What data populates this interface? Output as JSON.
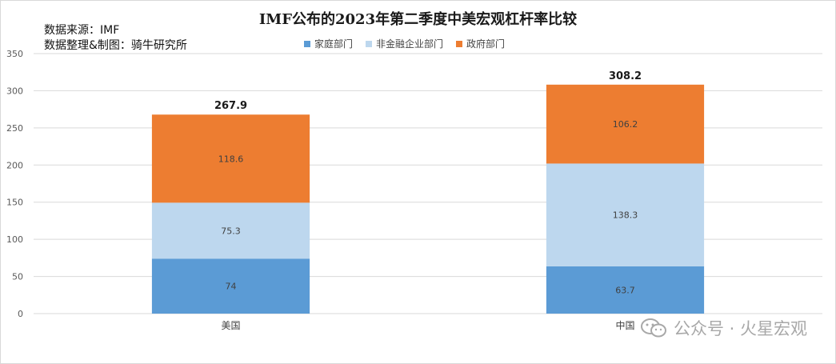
{
  "chart_data": {
    "type": "bar",
    "stacked": true,
    "title": "IMF公布的2023年第二季度中美宏观杠杆率比较",
    "categories": [
      "美国",
      "中国"
    ],
    "series": [
      {
        "name": "家庭部门",
        "values": [
          74,
          63.7
        ],
        "labels": [
          "74",
          "63.7"
        ],
        "color": "#5b9bd5"
      },
      {
        "name": "非金融企业部门",
        "values": [
          75.3,
          138.3
        ],
        "labels": [
          "75.3",
          "138.3"
        ],
        "color": "#bdd7ee"
      },
      {
        "name": "政府部门",
        "values": [
          118.6,
          106.2
        ],
        "labels": [
          "118.6",
          "106.2"
        ],
        "color": "#ed7d31"
      }
    ],
    "totals": [
      "267.9",
      "308.2"
    ],
    "ylim": [
      0,
      350
    ],
    "yticks": [
      "0",
      "50",
      "100",
      "150",
      "200",
      "250",
      "300",
      "350"
    ],
    "grid": true,
    "legend_position": "top"
  },
  "source_lines": [
    "数据来源：IMF",
    "数据整理&制图：骑牛研究所"
  ],
  "watermark": {
    "text": "公众号 · 火星宏观",
    "icon": "wechat-icon"
  }
}
